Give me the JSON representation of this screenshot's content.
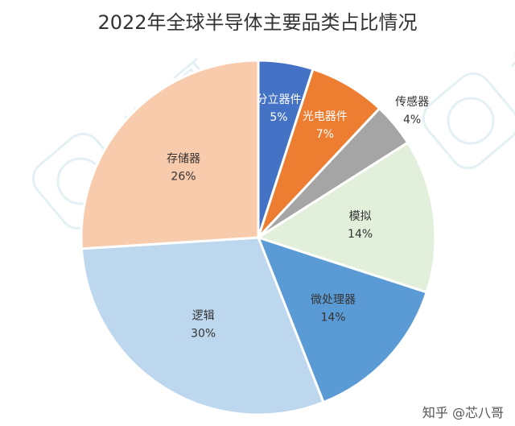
{
  "chart_data": {
    "type": "pie",
    "title": "2022年全球半导体主要品类占比情况",
    "slices": [
      {
        "label": "分立器件",
        "value": 5,
        "value_label": "5%",
        "color": "#4472c4"
      },
      {
        "label": "光电器件",
        "value": 7,
        "value_label": "7%",
        "color": "#ed7d31"
      },
      {
        "label": "传感器",
        "value": 4,
        "value_label": "4%",
        "color": "#a5a5a5"
      },
      {
        "label": "模拟",
        "value": 14,
        "value_label": "14%",
        "color": "#e2efda"
      },
      {
        "label": "微处理器",
        "value": 14,
        "value_label": "14%",
        "color": "#5b9bd5"
      },
      {
        "label": "逻辑",
        "value": 30,
        "value_label": "30%",
        "color": "#bdd7ee"
      },
      {
        "label": "存储器",
        "value": 26,
        "value_label": "26%",
        "color": "#f8cbad"
      }
    ],
    "start": "12 o'clock",
    "direction": "clockwise",
    "legend": "none",
    "data_labels": "inside slices"
  },
  "watermark": {
    "text": "知乎 @芯八哥",
    "stamp_text": "芯八哥"
  }
}
